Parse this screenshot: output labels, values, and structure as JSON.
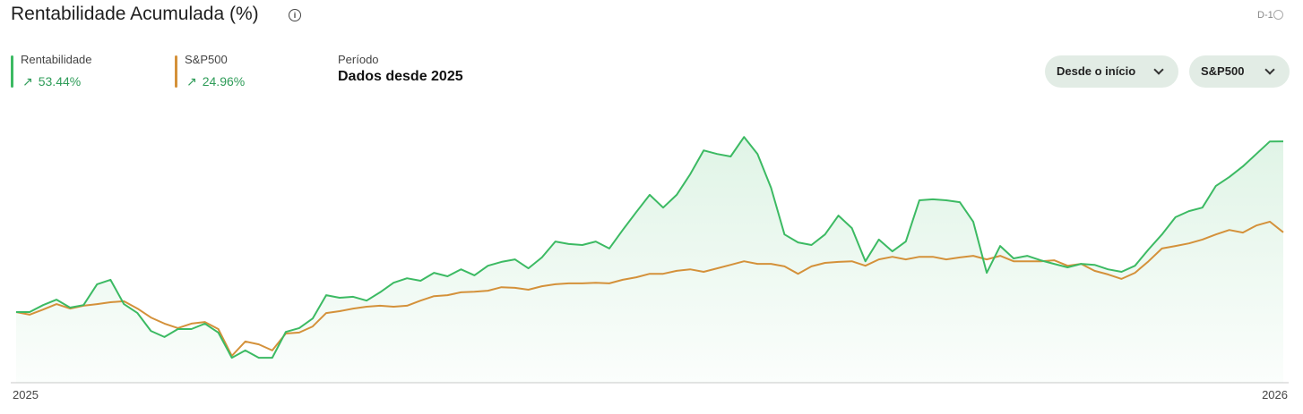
{
  "header": {
    "title": "Rentabilidade Acumulada (%)",
    "badge": "D-1"
  },
  "period": {
    "label": "Período",
    "value": "Dados desde 2025"
  },
  "controls": [
    "Desde o início",
    "S&P500"
  ],
  "chart_data": {
    "type": "line",
    "x_labels": [
      "2025",
      "2026"
    ],
    "ylim": [
      -22.1,
      61.3
    ],
    "series": [
      {
        "name": "Rentabilidade",
        "color": "#3cba63",
        "return_label": "53.44%",
        "area": true,
        "values": [
          0,
          0,
          2.2,
          3.9,
          1.4,
          2.2,
          8.7,
          10.1,
          2.5,
          -0.3,
          -5.9,
          -7.8,
          -5.3,
          -5.3,
          -3.6,
          -6.4,
          -14.3,
          -12.0,
          -14.3,
          -14.3,
          -6.2,
          -5.0,
          -2.0,
          5.3,
          4.5,
          4.8,
          3.6,
          6.2,
          9.2,
          10.6,
          9.8,
          12.3,
          11.2,
          13.4,
          11.5,
          14.5,
          15.7,
          16.5,
          13.7,
          17.1,
          22.1,
          21.3,
          21.0,
          22.1,
          19.9,
          25.7,
          31.3,
          36.7,
          32.7,
          36.7,
          43.1,
          50.6,
          49.5,
          48.7,
          54.8,
          49.5,
          38.9,
          24.3,
          21.8,
          21.0,
          24.3,
          30.2,
          26.3,
          15.9,
          22.7,
          19.0,
          22.1,
          35.0,
          35.3,
          35.0,
          34.4,
          28.3,
          12.3,
          20.7,
          16.8,
          17.6,
          16.2,
          15.1,
          14.0,
          15.1,
          14.8,
          13.4,
          12.6,
          14.5,
          19.6,
          24.3,
          29.7,
          31.6,
          32.7,
          39.5,
          42.3,
          45.6,
          49.5,
          53.4,
          53.44
        ]
      },
      {
        "name": "S&P500",
        "color": "#d4913a",
        "return_label": "24.96%",
        "area": false,
        "values": [
          0,
          -0.8,
          0.8,
          2.5,
          1.1,
          2.0,
          2.5,
          3.1,
          3.4,
          1.1,
          -1.7,
          -3.6,
          -5.0,
          -3.6,
          -3.1,
          -5.3,
          -13.7,
          -9.2,
          -10.1,
          -12.0,
          -6.7,
          -6.4,
          -4.5,
          -0.3,
          0.3,
          1.1,
          1.7,
          2.0,
          1.7,
          2.0,
          3.6,
          5.0,
          5.3,
          6.2,
          6.4,
          6.7,
          7.8,
          7.6,
          7.0,
          8.1,
          8.7,
          9.0,
          9.0,
          9.2,
          9.0,
          10.1,
          10.9,
          12.0,
          12.0,
          12.9,
          13.4,
          12.6,
          13.7,
          14.8,
          15.9,
          15.1,
          15.1,
          14.3,
          12.0,
          14.3,
          15.4,
          15.7,
          15.9,
          14.5,
          16.5,
          17.3,
          16.5,
          17.3,
          17.3,
          16.5,
          17.1,
          17.6,
          16.5,
          17.6,
          15.9,
          15.9,
          15.9,
          16.2,
          14.5,
          15.1,
          12.9,
          11.8,
          10.4,
          12.3,
          15.9,
          19.9,
          20.7,
          21.5,
          22.7,
          24.3,
          25.7,
          24.9,
          27.1,
          28.3,
          24.96
        ]
      }
    ]
  }
}
